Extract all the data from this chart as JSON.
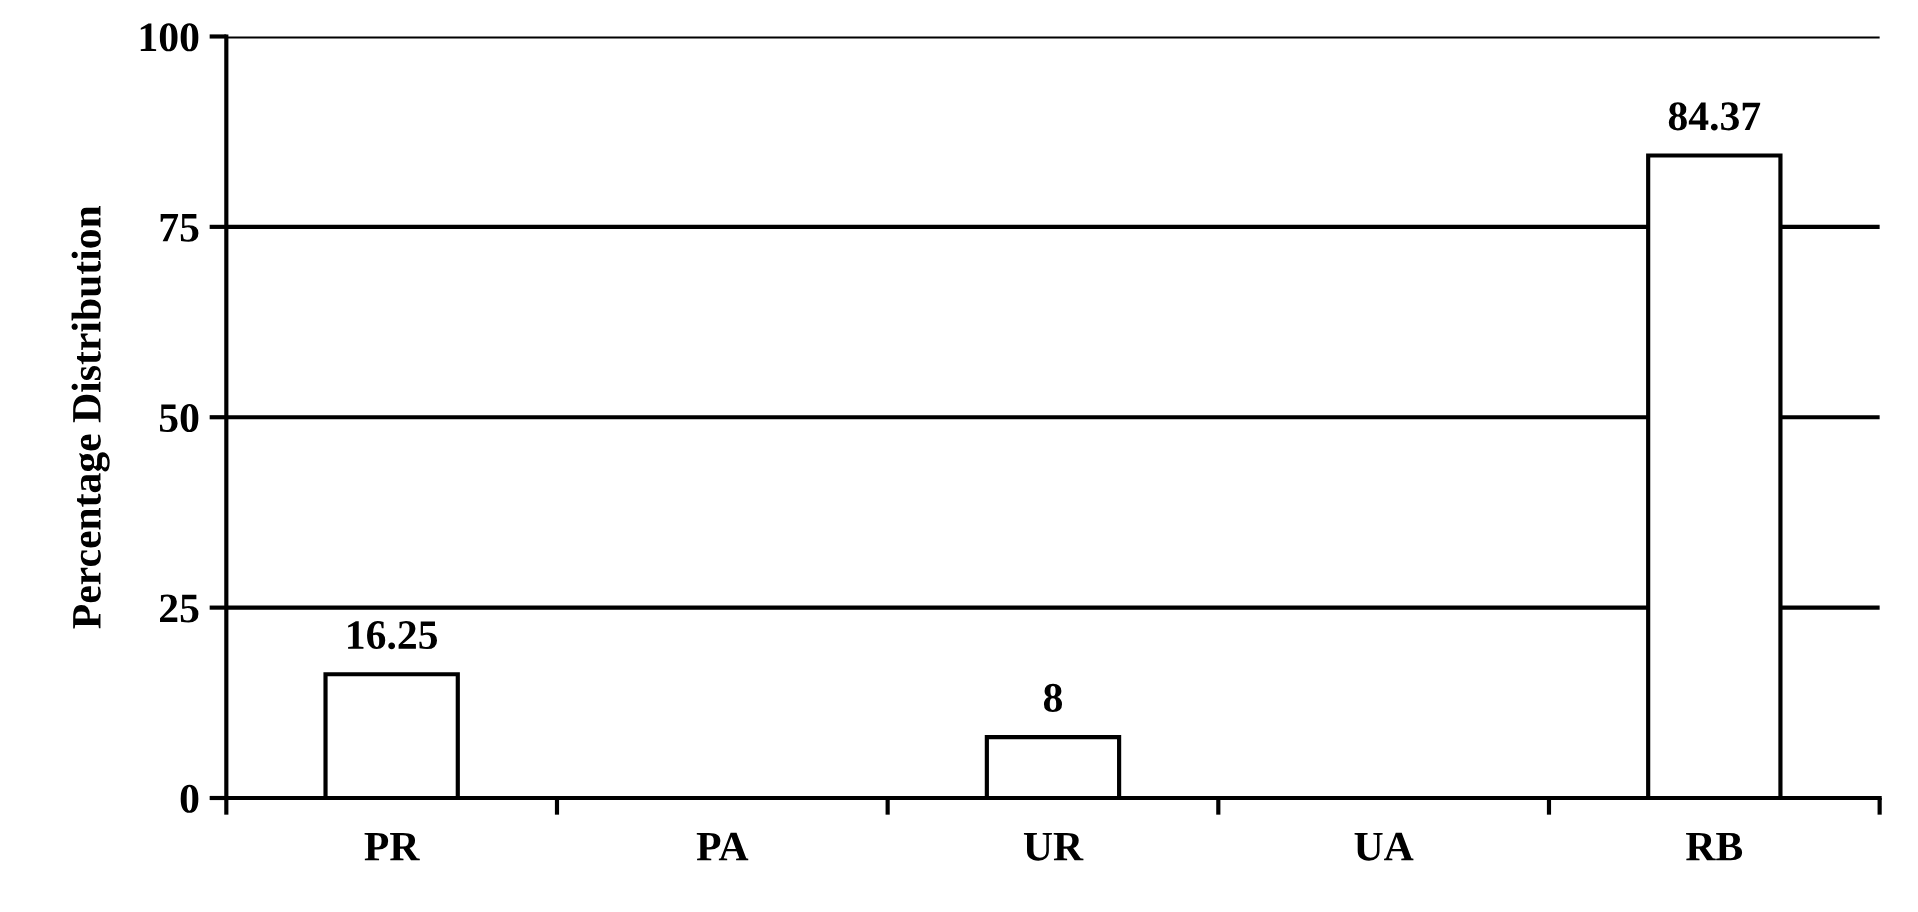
{
  "chart_data": {
    "type": "bar",
    "ylabel": "Percentage Distribution",
    "categories": [
      "PR",
      "PA",
      "UR",
      "UA",
      "RB"
    ],
    "values": [
      16.25,
      null,
      8,
      null,
      84.37
    ],
    "value_labels": [
      "16.25",
      null,
      "8",
      null,
      "84.37"
    ],
    "color": "#ffffff",
    "ylim": [
      0,
      100
    ],
    "yticks": [
      0,
      25,
      50,
      75,
      100
    ],
    "grid": "y"
  }
}
